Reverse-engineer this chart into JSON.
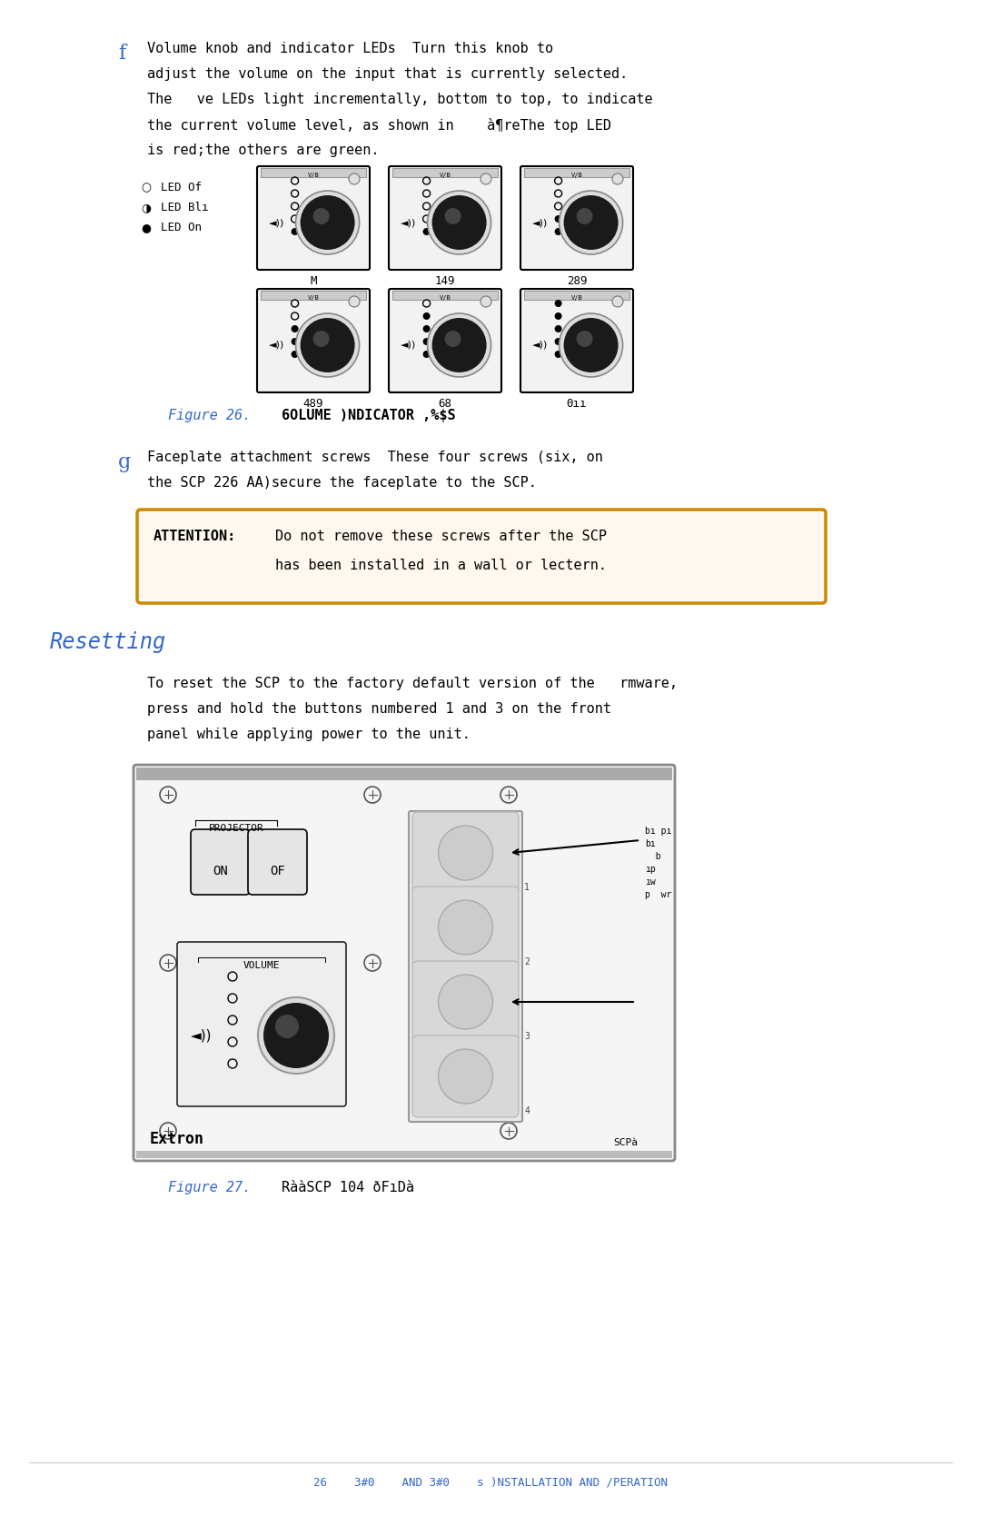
{
  "bg_color": "#ffffff",
  "text_color": "#000000",
  "blue_color": "#3366cc",
  "orange_color": "#cc8800",
  "attention_bg": "#fff8ee",
  "figsize": [
    10.8,
    16.69
  ],
  "dpi": 100,
  "section_f_letter": "f",
  "section_f_text_lines": [
    "Volume knob and indicator LEDs  Turn this knob to",
    "adjust the volume on the input that is currently selected.",
    "The   ve LEDs light incrementally, bottom to top, to indicate",
    "the current volume level, as shown in    à¶reThe top LED",
    "is red;the others are green."
  ],
  "figure26_label": "Figure 26.",
  "figure26_title": "6OLUME )NDICATOR ,%$S",
  "section_g_letter": "g",
  "section_g_text_lines": [
    "Faceplate attachment screws  These four screws (six, on",
    "the SCP 226 AA)secure the faceplate to the SCP."
  ],
  "attention_label": "ATTENTION:",
  "attention_text_line1": "Do not remove these screws after the SCP",
  "attention_text_line2": "has been installed in a wall or lectern.",
  "resetting_title": "Resetting",
  "resetting_text_lines": [
    "To reset the SCP to the factory default version of the   rmware,",
    "press and hold the buttons numbered 1 and 3 on the front",
    "panel while applying power to the unit."
  ],
  "figure27_label": "Figure 27.",
  "figure27_title": "RààSCP 104 ðFıDà",
  "footer_text": "26    3#0    AND 3#0    s )NSTALLATION AND /PERATION"
}
